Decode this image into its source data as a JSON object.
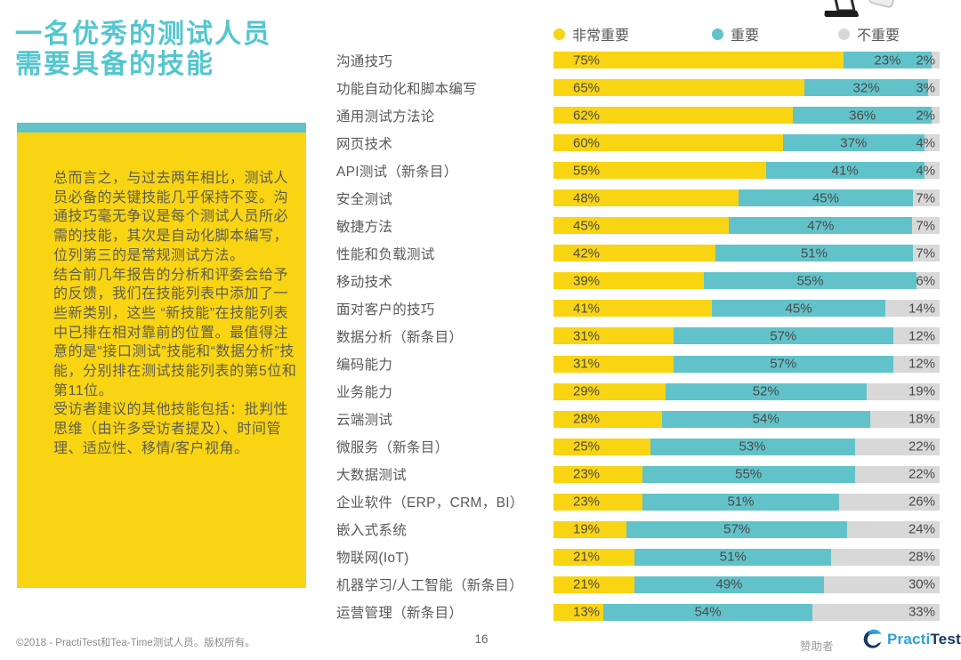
{
  "page": {
    "title_lines": [
      "一名优秀的测试人员",
      "需要具备的技能"
    ],
    "summary_paragraphs": [
      "总而言之，与过去两年相比，测试人员必备的关键技能几乎保持不变。沟通技巧毫无争议是每个测试人员所必需的技能，其次是自动化脚本编写，位列第三的是常规测试方法。",
      "结合前几年报告的分析和评委会给予的反馈，我们在技能列表中添加了一些新类别，这些 “新技能”在技能列表中已排在相对靠前的位置。最值得注意的是“接口测试”技能和“数据分析”技能，分别排在测试技能列表的第5位和第11位。",
      "受访者建议的其他技能包括：批判性思维（由许多受访者提及）、时间管理、适应性、移情/客户视角。"
    ],
    "footer": {
      "copyright": "©2018 - PractiTest和Tea-Time测试人员。版权所有。",
      "page_number": "16",
      "sponsor_label": "赞助者",
      "logo_text_primary": "Practi",
      "logo_text_secondary": "Test"
    },
    "icons": {
      "top_right": [
        "laptop-icon",
        "paper-icon"
      ],
      "logo": "practitest-swirl-icon"
    }
  },
  "colors": {
    "title_teal": "#54C6CE",
    "very_important_yellow": "#F9D413",
    "important_teal": "#61C3C9",
    "not_important_gray": "#D8D8D8",
    "logo_blue": "#2EA3DB",
    "logo_navy": "#17375C"
  },
  "chart_data": {
    "type": "bar",
    "variant": "horizontal-stacked-100",
    "legend_position": "top",
    "grid": false,
    "value_suffix": "%",
    "xlim": [
      0,
      100
    ],
    "legend": [
      {
        "label": "非常重要",
        "color": "#F9D413"
      },
      {
        "label": "重要",
        "color": "#61C3C9"
      },
      {
        "label": "不重要",
        "color": "#D8D8D8"
      }
    ],
    "categories": [
      "沟通技巧",
      "功能自动化和脚本编写",
      "通用测试方法论",
      "网页技术",
      "API测试（新条目）",
      "安全测试",
      "敏捷方法",
      "性能和负载测试",
      "移动技术",
      "面对客户的技巧",
      "数据分析（新条目）",
      "编码能力",
      "业务能力",
      "云端测试",
      "微服务（新条目）",
      "大数据测试",
      "企业软件（ERP，CRM，BI）",
      "嵌入式系统",
      "物联网(IoT)",
      "机器学习/人工智能（新条目）",
      "运营管理（新条目）"
    ],
    "series": [
      {
        "name": "非常重要",
        "values": [
          75,
          65,
          62,
          60,
          55,
          48,
          45,
          42,
          39,
          41,
          31,
          31,
          29,
          28,
          25,
          23,
          23,
          19,
          21,
          21,
          13
        ]
      },
      {
        "name": "重要",
        "values": [
          23,
          32,
          36,
          37,
          41,
          45,
          47,
          51,
          55,
          45,
          57,
          57,
          52,
          54,
          53,
          55,
          51,
          57,
          51,
          49,
          54
        ]
      },
      {
        "name": "不重要",
        "values": [
          2,
          3,
          2,
          4,
          4,
          7,
          7,
          7,
          6,
          14,
          12,
          12,
          19,
          18,
          22,
          22,
          26,
          24,
          28,
          30,
          33
        ]
      }
    ]
  }
}
